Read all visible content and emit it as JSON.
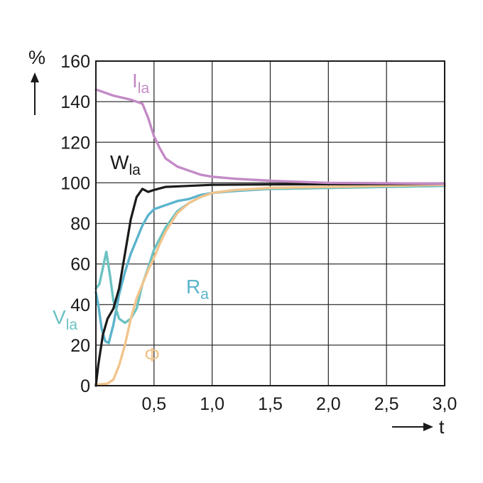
{
  "chart_data": {
    "type": "line",
    "title": "",
    "ylabel": "%",
    "xlabel": "t",
    "xlim": [
      0,
      3.0
    ],
    "ylim": [
      0,
      160
    ],
    "grid": true,
    "x_ticks": [
      0.5,
      1.0,
      1.5,
      2.0,
      2.5,
      3.0
    ],
    "x_tick_labels": [
      "0,5",
      "1,0",
      "1,5",
      "2,0",
      "2,5",
      "3,0"
    ],
    "y_ticks": [
      0,
      20,
      40,
      60,
      80,
      100,
      120,
      140,
      160
    ],
    "y_tick_labels": [
      "0",
      "20",
      "40",
      "60",
      "80",
      "100",
      "120",
      "140",
      "160"
    ],
    "series": [
      {
        "name": "Ila",
        "label_main": "I",
        "label_sub": "la",
        "color": "#c38ac6",
        "points": [
          [
            0,
            146
          ],
          [
            0.05,
            145
          ],
          [
            0.15,
            143
          ],
          [
            0.3,
            141
          ],
          [
            0.4,
            139
          ],
          [
            0.45,
            132
          ],
          [
            0.5,
            123
          ],
          [
            0.55,
            117
          ],
          [
            0.6,
            112
          ],
          [
            0.7,
            108
          ],
          [
            0.8,
            106
          ],
          [
            0.9,
            104
          ],
          [
            1.0,
            103
          ],
          [
            1.2,
            102
          ],
          [
            1.5,
            101
          ],
          [
            2.0,
            100
          ],
          [
            2.5,
            99.8
          ],
          [
            3.0,
            99.5
          ]
        ]
      },
      {
        "name": "Wla",
        "label_main": "W",
        "label_sub": "la",
        "color": "#1a1a1a",
        "points": [
          [
            0,
            0
          ],
          [
            0.02,
            10
          ],
          [
            0.06,
            25
          ],
          [
            0.1,
            33
          ],
          [
            0.15,
            38
          ],
          [
            0.2,
            48
          ],
          [
            0.25,
            65
          ],
          [
            0.3,
            82
          ],
          [
            0.35,
            93
          ],
          [
            0.4,
            97
          ],
          [
            0.45,
            95.5
          ],
          [
            0.5,
            96.5
          ],
          [
            0.6,
            98
          ],
          [
            0.8,
            98.5
          ],
          [
            1.0,
            99
          ],
          [
            1.5,
            99.2
          ],
          [
            2.0,
            99.3
          ],
          [
            3.0,
            99.5
          ]
        ]
      },
      {
        "name": "Vla",
        "label_main": "V",
        "label_sub": "la",
        "color": "#6cc2c2",
        "points": [
          [
            0,
            48
          ],
          [
            0.03,
            50
          ],
          [
            0.06,
            58
          ],
          [
            0.09,
            66
          ],
          [
            0.12,
            55
          ],
          [
            0.15,
            42
          ],
          [
            0.2,
            33
          ],
          [
            0.25,
            31
          ],
          [
            0.3,
            33
          ],
          [
            0.35,
            38
          ],
          [
            0.4,
            50
          ],
          [
            0.45,
            58
          ],
          [
            0.5,
            67
          ],
          [
            0.6,
            78
          ],
          [
            0.7,
            86
          ],
          [
            0.8,
            90
          ],
          [
            0.9,
            93
          ],
          [
            1.0,
            95
          ],
          [
            1.2,
            96.5
          ],
          [
            1.5,
            97
          ],
          [
            2.0,
            97.5
          ],
          [
            3.0,
            98.5
          ]
        ]
      },
      {
        "name": "Ra",
        "label_main": "R",
        "label_sub": "a",
        "color": "#5bb3cc",
        "points": [
          [
            0,
            46
          ],
          [
            0.02,
            40
          ],
          [
            0.05,
            28
          ],
          [
            0.08,
            22
          ],
          [
            0.11,
            21
          ],
          [
            0.15,
            30
          ],
          [
            0.2,
            45
          ],
          [
            0.25,
            56
          ],
          [
            0.3,
            65
          ],
          [
            0.35,
            72
          ],
          [
            0.4,
            79
          ],
          [
            0.45,
            84
          ],
          [
            0.5,
            87
          ],
          [
            0.6,
            89
          ],
          [
            0.7,
            91
          ],
          [
            0.8,
            92
          ],
          [
            0.9,
            94
          ],
          [
            1.0,
            95
          ],
          [
            1.2,
            96
          ],
          [
            1.5,
            97
          ],
          [
            2.0,
            97.5
          ],
          [
            3.0,
            98.5
          ]
        ]
      },
      {
        "name": "Φ",
        "label_main": "Φ",
        "label_sub": "",
        "color": "#f2c48c",
        "points": [
          [
            0,
            0.5
          ],
          [
            0.1,
            1
          ],
          [
            0.15,
            3
          ],
          [
            0.2,
            10
          ],
          [
            0.25,
            20
          ],
          [
            0.3,
            33
          ],
          [
            0.35,
            43
          ],
          [
            0.4,
            50
          ],
          [
            0.45,
            57
          ],
          [
            0.5,
            63
          ],
          [
            0.55,
            70
          ],
          [
            0.6,
            76
          ],
          [
            0.7,
            85
          ],
          [
            0.8,
            90
          ],
          [
            0.9,
            93
          ],
          [
            1.0,
            95
          ],
          [
            1.2,
            96.5
          ],
          [
            1.5,
            97.5
          ],
          [
            2.0,
            98
          ],
          [
            3.0,
            99
          ]
        ]
      }
    ]
  }
}
